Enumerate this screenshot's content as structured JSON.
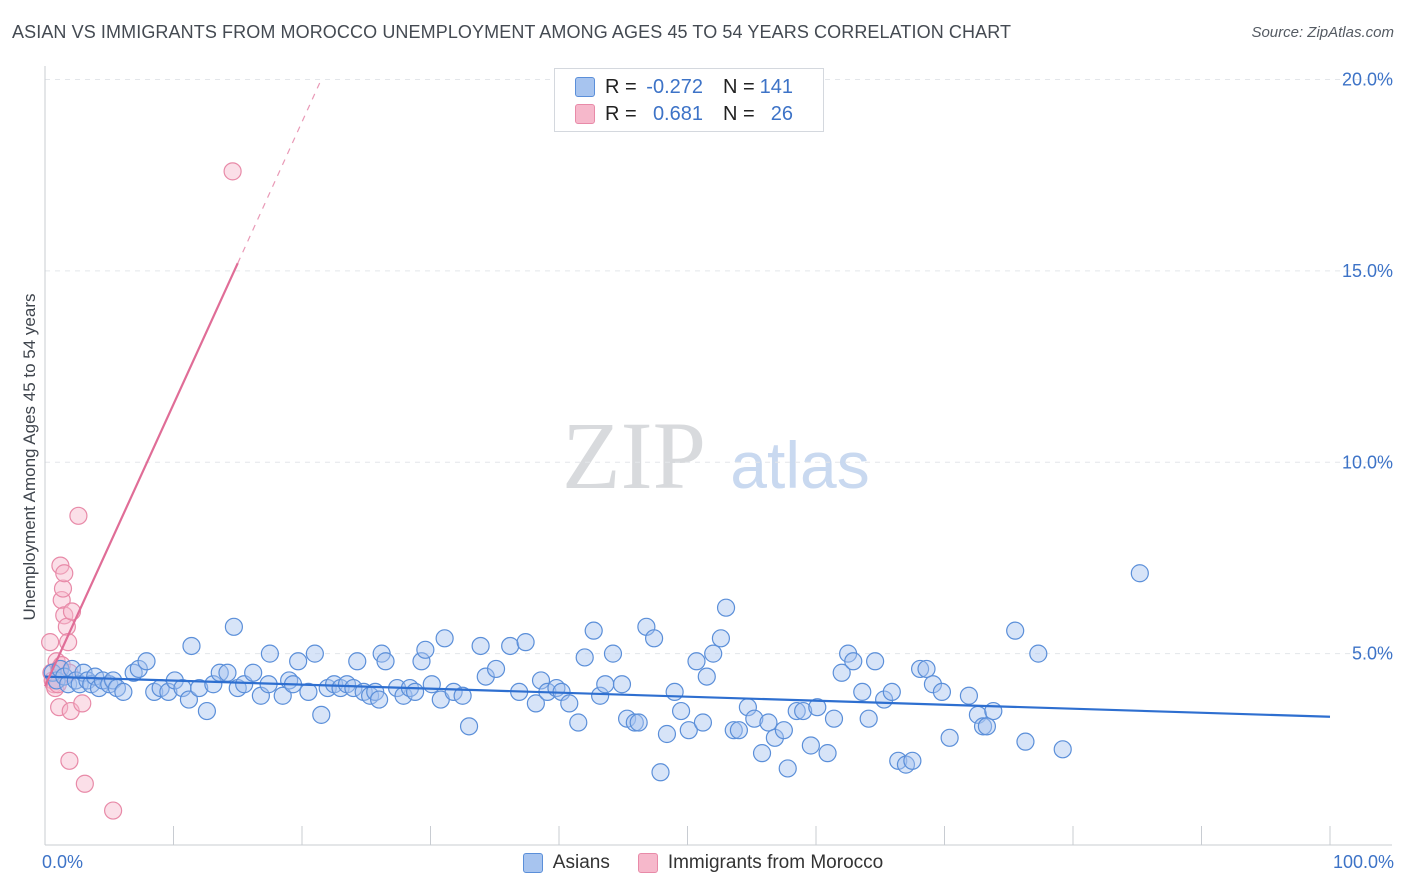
{
  "title": "ASIAN VS IMMIGRANTS FROM MOROCCO UNEMPLOYMENT AMONG AGES 45 TO 54 YEARS CORRELATION CHART",
  "source": "Source: ZipAtlas.com",
  "watermark": {
    "zip": "ZIP",
    "atlas": "atlas"
  },
  "colors": {
    "asian_fill": "#a7c4ef",
    "asian_stroke": "#5b8fd9",
    "asian_line": "#2e6fd0",
    "morocco_fill": "#f6b8cb",
    "morocco_stroke": "#e88aa8",
    "morocco_line": "#e06d97",
    "axis_label": "#3d73c7",
    "grid": "#e3e6ea"
  },
  "legend": {
    "rows": [
      {
        "r_label": "R =",
        "r_value": "-0.272",
        "n_label": "N =",
        "n_value": "141"
      },
      {
        "r_label": "R =",
        "r_value": "0.681",
        "n_label": "N =",
        "n_value": "26"
      }
    ]
  },
  "bottom_legend": [
    "Asians",
    "Immigrants from Morocco"
  ],
  "chart_data": {
    "type": "scatter",
    "title": "ASIAN VS IMMIGRANTS FROM MOROCCO UNEMPLOYMENT AMONG AGES 45 TO 54 YEARS CORRELATION CHART",
    "xlabel": "",
    "ylabel": "Unemployment Among Ages 45 to 54 years",
    "xlim": [
      0,
      100
    ],
    "ylim": [
      0,
      20
    ],
    "x_tick_labels": [
      "0.0%",
      "100.0%"
    ],
    "y_ticks": [
      5,
      10,
      15,
      20
    ],
    "y_tick_labels": [
      "5.0%",
      "10.0%",
      "15.0%",
      "20.0%"
    ],
    "legend_position": "top-center",
    "series": [
      {
        "name": "Asians",
        "R": -0.272,
        "N": 141,
        "trend": {
          "x": [
            0,
            100
          ],
          "y": [
            4.4,
            3.35
          ]
        },
        "points": [
          [
            0.6,
            4.5
          ],
          [
            0.9,
            4.3
          ],
          [
            1.2,
            4.6
          ],
          [
            1.5,
            4.4
          ],
          [
            1.8,
            4.2
          ],
          [
            2.1,
            4.6
          ],
          [
            2.4,
            4.3
          ],
          [
            2.7,
            4.2
          ],
          [
            3.0,
            4.5
          ],
          [
            3.3,
            4.3
          ],
          [
            3.6,
            4.2
          ],
          [
            3.9,
            4.4
          ],
          [
            4.2,
            4.1
          ],
          [
            4.5,
            4.3
          ],
          [
            5.0,
            4.2
          ],
          [
            5.3,
            4.3
          ],
          [
            5.6,
            4.1
          ],
          [
            6.1,
            4.0
          ],
          [
            6.9,
            4.5
          ],
          [
            7.3,
            4.6
          ],
          [
            7.9,
            4.8
          ],
          [
            8.5,
            4.0
          ],
          [
            9.0,
            4.1
          ],
          [
            9.6,
            4.0
          ],
          [
            10.1,
            4.3
          ],
          [
            10.7,
            4.1
          ],
          [
            11.2,
            3.8
          ],
          [
            12.0,
            4.1
          ],
          [
            12.6,
            3.5
          ],
          [
            11.4,
            5.2
          ],
          [
            13.1,
            4.2
          ],
          [
            13.6,
            4.5
          ],
          [
            14.2,
            4.5
          ],
          [
            14.7,
            5.7
          ],
          [
            15.0,
            4.1
          ],
          [
            15.5,
            4.2
          ],
          [
            16.2,
            4.5
          ],
          [
            16.8,
            3.9
          ],
          [
            17.4,
            4.2
          ],
          [
            17.5,
            5.0
          ],
          [
            18.5,
            3.9
          ],
          [
            19.0,
            4.3
          ],
          [
            19.3,
            4.2
          ],
          [
            19.7,
            4.8
          ],
          [
            20.5,
            4.0
          ],
          [
            21.0,
            5.0
          ],
          [
            21.5,
            3.4
          ],
          [
            22.0,
            4.1
          ],
          [
            22.5,
            4.2
          ],
          [
            23.0,
            4.1
          ],
          [
            23.5,
            4.2
          ],
          [
            24.0,
            4.1
          ],
          [
            24.3,
            4.8
          ],
          [
            24.8,
            4.0
          ],
          [
            25.3,
            3.9
          ],
          [
            25.7,
            4.0
          ],
          [
            26.0,
            3.8
          ],
          [
            26.2,
            5.0
          ],
          [
            26.5,
            4.8
          ],
          [
            27.4,
            4.1
          ],
          [
            27.9,
            3.9
          ],
          [
            28.4,
            4.1
          ],
          [
            28.8,
            4.0
          ],
          [
            29.3,
            4.8
          ],
          [
            29.6,
            5.1
          ],
          [
            30.1,
            4.2
          ],
          [
            30.8,
            3.8
          ],
          [
            31.1,
            5.4
          ],
          [
            31.8,
            4.0
          ],
          [
            32.5,
            3.9
          ],
          [
            33.0,
            3.1
          ],
          [
            33.9,
            5.2
          ],
          [
            34.3,
            4.4
          ],
          [
            35.1,
            4.6
          ],
          [
            36.2,
            5.2
          ],
          [
            36.9,
            4.0
          ],
          [
            37.4,
            5.3
          ],
          [
            38.2,
            3.7
          ],
          [
            38.6,
            4.3
          ],
          [
            39.1,
            4.0
          ],
          [
            39.8,
            4.1
          ],
          [
            40.2,
            4.0
          ],
          [
            40.8,
            3.7
          ],
          [
            41.5,
            3.2
          ],
          [
            42.0,
            4.9
          ],
          [
            42.7,
            5.6
          ],
          [
            43.2,
            3.9
          ],
          [
            43.6,
            4.2
          ],
          [
            44.2,
            5.0
          ],
          [
            44.9,
            4.2
          ],
          [
            45.3,
            3.3
          ],
          [
            45.9,
            3.2
          ],
          [
            46.2,
            3.2
          ],
          [
            46.8,
            5.7
          ],
          [
            47.4,
            5.4
          ],
          [
            47.9,
            1.9
          ],
          [
            48.4,
            2.9
          ],
          [
            49.0,
            4.0
          ],
          [
            49.5,
            3.5
          ],
          [
            50.1,
            3.0
          ],
          [
            50.7,
            4.8
          ],
          [
            51.2,
            3.2
          ],
          [
            51.5,
            4.4
          ],
          [
            52.0,
            5.0
          ],
          [
            52.6,
            5.4
          ],
          [
            53.0,
            6.2
          ],
          [
            53.6,
            3.0
          ],
          [
            54.0,
            3.0
          ],
          [
            54.7,
            3.6
          ],
          [
            55.2,
            3.3
          ],
          [
            55.8,
            2.4
          ],
          [
            56.3,
            3.2
          ],
          [
            56.8,
            2.8
          ],
          [
            57.5,
            3.0
          ],
          [
            57.8,
            2.0
          ],
          [
            58.5,
            3.5
          ],
          [
            59.0,
            3.5
          ],
          [
            59.6,
            2.6
          ],
          [
            60.1,
            3.6
          ],
          [
            60.9,
            2.4
          ],
          [
            61.4,
            3.3
          ],
          [
            62.0,
            4.5
          ],
          [
            62.5,
            5.0
          ],
          [
            62.9,
            4.8
          ],
          [
            63.6,
            4.0
          ],
          [
            64.1,
            3.3
          ],
          [
            64.6,
            4.8
          ],
          [
            65.3,
            3.8
          ],
          [
            65.9,
            4.0
          ],
          [
            66.4,
            2.2
          ],
          [
            67.0,
            2.1
          ],
          [
            67.5,
            2.2
          ],
          [
            68.1,
            4.6
          ],
          [
            68.6,
            4.6
          ],
          [
            69.1,
            4.2
          ],
          [
            69.8,
            4.0
          ],
          [
            70.4,
            2.8
          ],
          [
            71.9,
            3.9
          ],
          [
            72.6,
            3.4
          ],
          [
            73.0,
            3.1
          ],
          [
            73.3,
            3.1
          ],
          [
            73.8,
            3.5
          ],
          [
            75.5,
            5.6
          ],
          [
            76.3,
            2.7
          ],
          [
            77.3,
            5.0
          ],
          [
            79.2,
            2.5
          ],
          [
            85.2,
            7.1
          ]
        ]
      },
      {
        "name": "Immigrants from Morocco",
        "R": 0.681,
        "N": 26,
        "trend": {
          "x": [
            0,
            15
          ],
          "y": [
            4.15,
            15.2
          ],
          "dashed_extension": {
            "x": [
              15,
              21.5
            ],
            "y": [
              15.2,
              20.0
            ]
          }
        },
        "points": [
          [
            0.4,
            5.3
          ],
          [
            0.5,
            4.5
          ],
          [
            0.6,
            4.3
          ],
          [
            0.7,
            4.2
          ],
          [
            0.8,
            4.1
          ],
          [
            0.9,
            4.8
          ],
          [
            1.0,
            4.2
          ],
          [
            1.1,
            3.6
          ],
          [
            1.1,
            4.6
          ],
          [
            1.2,
            7.3
          ],
          [
            1.3,
            6.4
          ],
          [
            1.3,
            4.7
          ],
          [
            1.4,
            6.7
          ],
          [
            1.5,
            7.1
          ],
          [
            1.5,
            6.0
          ],
          [
            1.7,
            5.7
          ],
          [
            1.8,
            5.3
          ],
          [
            1.9,
            4.5
          ],
          [
            1.9,
            2.2
          ],
          [
            2.0,
            3.5
          ],
          [
            2.1,
            6.1
          ],
          [
            2.6,
            8.6
          ],
          [
            2.9,
            3.7
          ],
          [
            3.1,
            1.6
          ],
          [
            5.3,
            0.9
          ],
          [
            14.6,
            17.6
          ]
        ]
      }
    ]
  }
}
